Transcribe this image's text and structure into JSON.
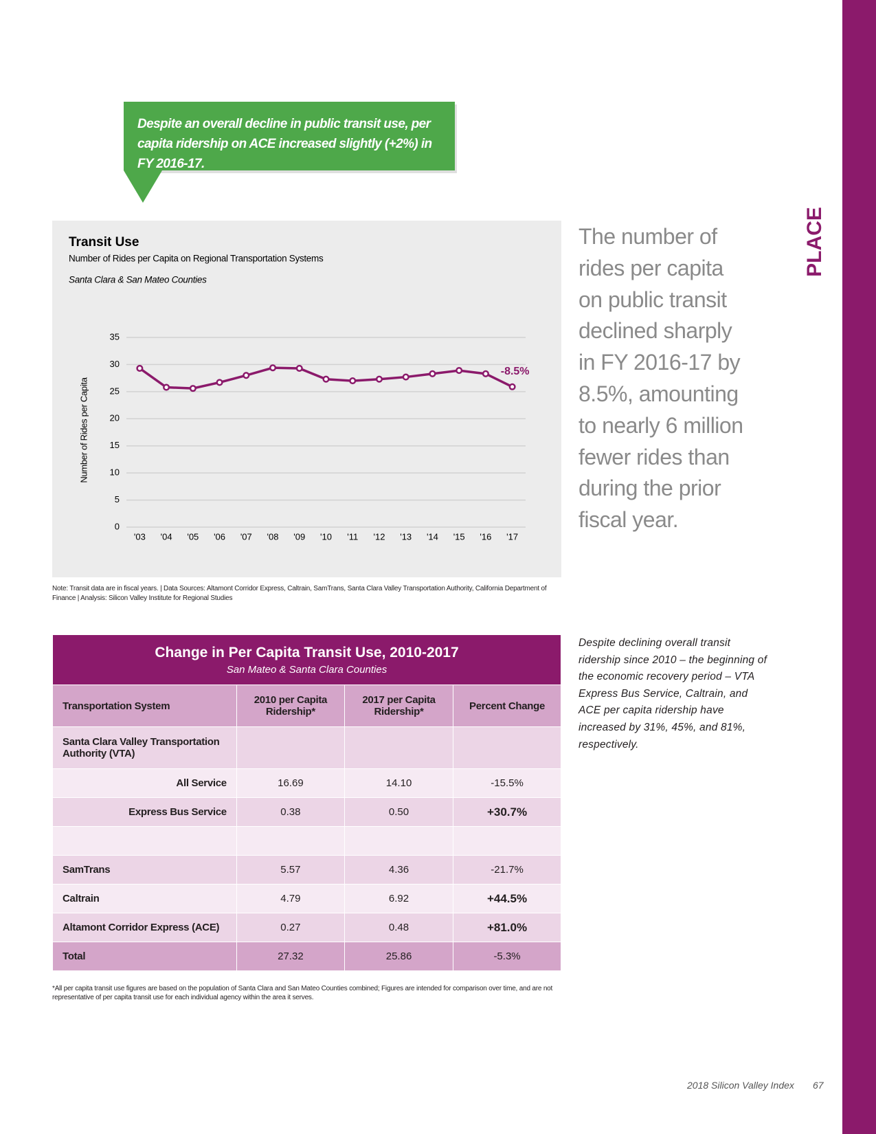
{
  "section_label": "PLACE",
  "callout": "Despite an overall decline in public transit use, per capita ridership on ACE increased slightly (+2%) in FY 2016-17.",
  "chart_data": {
    "type": "line",
    "title": "Transit Use",
    "subtitle": "Number of Rides per Capita on Regional Transportation Systems",
    "note": "Santa Clara & San Mateo Counties",
    "y_label": "Number of Rides per Capita",
    "categories": [
      "'03",
      "'04",
      "'05",
      "'06",
      "'07",
      "'08",
      "'09",
      "'10",
      "'11",
      "'12",
      "'13",
      "'14",
      "'15",
      "'16",
      "'17"
    ],
    "values": [
      29.3,
      25.8,
      25.6,
      26.7,
      28.0,
      29.4,
      29.3,
      27.3,
      27.0,
      27.3,
      27.7,
      28.3,
      28.9,
      28.3,
      25.9
    ],
    "color": "#8b1a6b",
    "annotation": "-8.5%",
    "ylim": [
      0,
      35
    ],
    "yticks": [
      0,
      5,
      10,
      15,
      20,
      25,
      30,
      35
    ],
    "grid": true
  },
  "chart_note": "Note: Transit data are in fiscal years. | Data Sources: Altamont Corridor Express, Caltrain, SamTrans, Santa Clara Valley Transportation Authority, California Department of Finance | Analysis: Silicon Valley Institute for Regional Studies",
  "side_text": {
    "lines": [
      "The number of",
      "rides per capita",
      "on public transit",
      "declined sharply",
      "in FY 2016-17 by",
      "8.5%, amounting",
      "to nearly 6 million",
      "fewer rides than",
      "during the prior",
      "fiscal year."
    ]
  },
  "table": {
    "title": "Change in Per Capita Transit Use, 2010-2017",
    "subtitle": "San Mateo & Santa Clara Counties",
    "header": [
      "Transportation System",
      "2010 per Capita Ridership*",
      "2017 per Capita Ridership*",
      "Percent Change"
    ],
    "groups": [
      {
        "label": "Santa Clara Valley Transportation Authority (VTA)",
        "rows": [
          {
            "label": "All Service",
            "values": [
              "16.69",
              "14.10",
              "-15.5%"
            ]
          },
          {
            "label": "Express Bus Service",
            "values": [
              "0.38",
              "0.50",
              "+30.7%"
            ]
          }
        ]
      },
      {
        "rows": [
          {
            "label": "SamTrans",
            "values": [
              "5.57",
              "4.36",
              "-21.7%"
            ]
          },
          {
            "label": "Caltrain",
            "values": [
              "4.79",
              "6.92",
              "+44.5%"
            ]
          },
          {
            "label": "Altamont Corridor Express (ACE)",
            "values": [
              "0.27",
              "0.48",
              "+81.0%"
            ]
          }
        ]
      }
    ],
    "total": {
      "label": "Total",
      "values": [
        "27.32",
        "25.86",
        "-5.3%"
      ]
    },
    "footnote": "*All per capita transit use figures are based on the population of Santa Clara and San Mateo Counties combined; Figures are intended for comparison over time, and are not representative of per capita transit use for each individual agency within the area it serves."
  },
  "right_note": "Despite declining overall transit ridership since 2010 – the beginning of the economic recovery period – VTA Express Bus Service, Caltrain, and ACE per capita ridership have increased by 31%, 45%, and 81%, respectively.",
  "footer": {
    "publication": "2018 Silicon Valley Index",
    "page": "67"
  }
}
